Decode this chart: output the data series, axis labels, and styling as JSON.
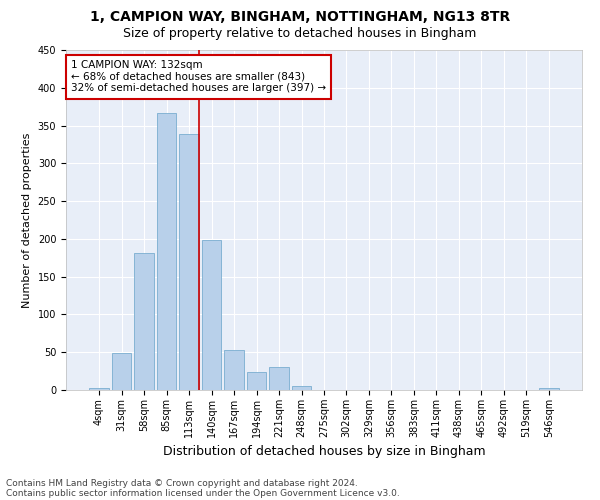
{
  "title": "1, CAMPION WAY, BINGHAM, NOTTINGHAM, NG13 8TR",
  "subtitle": "Size of property relative to detached houses in Bingham",
  "xlabel": "Distribution of detached houses by size in Bingham",
  "ylabel": "Number of detached properties",
  "bar_color": "#b8d0ea",
  "bar_edge_color": "#7aaed0",
  "background_color": "#ffffff",
  "plot_bg_color": "#e8eef8",
  "grid_color": "#ffffff",
  "bins": [
    "4sqm",
    "31sqm",
    "58sqm",
    "85sqm",
    "113sqm",
    "140sqm",
    "167sqm",
    "194sqm",
    "221sqm",
    "248sqm",
    "275sqm",
    "302sqm",
    "329sqm",
    "356sqm",
    "383sqm",
    "411sqm",
    "438sqm",
    "465sqm",
    "492sqm",
    "519sqm",
    "546sqm"
  ],
  "values": [
    2,
    49,
    181,
    366,
    339,
    199,
    53,
    24,
    31,
    5,
    0,
    0,
    0,
    0,
    0,
    0,
    0,
    0,
    0,
    0,
    2
  ],
  "vline_bin_index": 4,
  "annotation_text": "1 CAMPION WAY: 132sqm\n← 68% of detached houses are smaller (843)\n32% of semi-detached houses are larger (397) →",
  "annotation_box_color": "#ffffff",
  "annotation_box_edge_color": "#cc0000",
  "vline_color": "#cc0000",
  "ylim": [
    0,
    450
  ],
  "yticks": [
    0,
    50,
    100,
    150,
    200,
    250,
    300,
    350,
    400,
    450
  ],
  "footnote1": "Contains HM Land Registry data © Crown copyright and database right 2024.",
  "footnote2": "Contains public sector information licensed under the Open Government Licence v3.0.",
  "title_fontsize": 10,
  "subtitle_fontsize": 9,
  "xlabel_fontsize": 9,
  "ylabel_fontsize": 8,
  "tick_fontsize": 7,
  "annotation_fontsize": 7.5,
  "footnote_fontsize": 6.5
}
